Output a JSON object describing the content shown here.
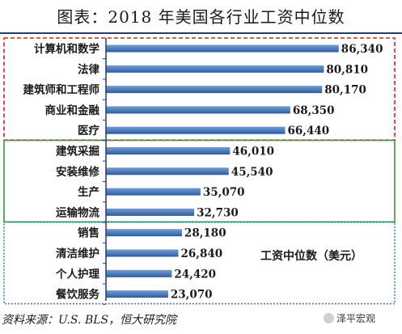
{
  "chart_data": {
    "type": "bar",
    "orientation": "horizontal",
    "title": "图表：2018 年美国各行业工资中位数",
    "categories": [
      "计算机和数学",
      "法律",
      "建筑师和工程师",
      "商业和金融",
      "医疗",
      "建筑采掘",
      "安装维修",
      "生产",
      "运输物流",
      "销售",
      "清洁维护",
      "个人护理",
      "餐饮服务"
    ],
    "values": [
      86340,
      80810,
      80170,
      68350,
      66440,
      46010,
      45540,
      35070,
      32730,
      28180,
      26840,
      24420,
      23070
    ],
    "value_labels": [
      "86,340",
      "80,810",
      "80,170",
      "68,350",
      "66,440",
      "46,010",
      "45,540",
      "35,070",
      "32,730",
      "28,180",
      "26,840",
      "24,420",
      "23,070"
    ],
    "annotation": "工资中位数（美元）",
    "xlim": [
      0,
      90000
    ],
    "grid": false,
    "groups": [
      {
        "items": [
          0,
          1,
          2,
          3,
          4
        ],
        "border_color": "#e02020",
        "border_style": "dashed"
      },
      {
        "items": [
          5,
          6,
          7,
          8
        ],
        "border_color": "#2e9a3c",
        "border_style": "solid"
      },
      {
        "items": [
          9,
          10,
          11,
          12
        ],
        "border_color": "#2c7fc0",
        "border_style": "dotted"
      }
    ],
    "bar_color": "#4f7fc0",
    "axis_color": "#1f3f73"
  },
  "footer": {
    "source": "资料来源：U.S. BLS，恒大研究院",
    "watermark": "泽平宏观",
    "watermark_icon": "wechat-logo-icon"
  }
}
